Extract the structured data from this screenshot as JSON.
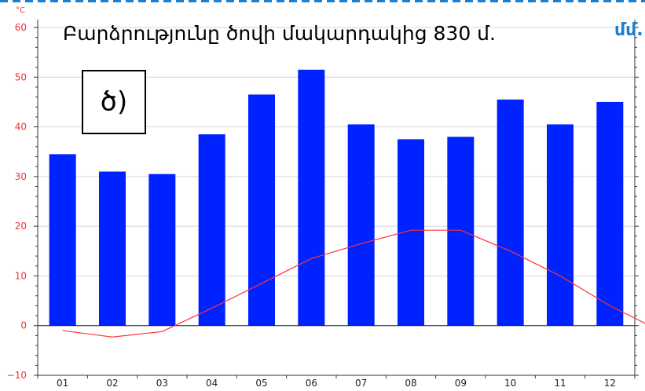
{
  "title": "Բարձրությունը ծովի մակարդակից 830 մ.",
  "panel_label": "ծ)",
  "right_unit": "մմ.",
  "left_unit": "°C",
  "colors": {
    "bars": "#0022ff",
    "line": "#ff3333",
    "left_axis_text": "#e8333a",
    "right_unit_text": "#1a7fd0",
    "grid": "#d6d6d6"
  },
  "chart_data": {
    "type": "bar",
    "categories": [
      "01",
      "02",
      "03",
      "04",
      "05",
      "06",
      "07",
      "08",
      "09",
      "10",
      "11",
      "12"
    ],
    "ylim": [
      -10,
      60
    ],
    "yticks": [
      -10,
      0,
      10,
      20,
      30,
      40,
      50,
      60
    ],
    "grid": true,
    "series": [
      {
        "type": "bar",
        "values": [
          34.5,
          31,
          30.5,
          38.5,
          46.5,
          51.5,
          40.5,
          37.5,
          38,
          45.5,
          40.5,
          45
        ]
      },
      {
        "type": "line",
        "x": [
          0.5,
          1.5,
          2.5,
          3.5,
          4.5,
          5.5,
          6.5,
          7.5,
          8.5,
          9.5,
          10.5,
          11.5,
          12.5
        ],
        "values": [
          -1,
          -2.3,
          -1.2,
          3.5,
          8.5,
          13.5,
          16.5,
          19.2,
          19.2,
          15,
          10,
          4,
          -1
        ]
      }
    ]
  }
}
